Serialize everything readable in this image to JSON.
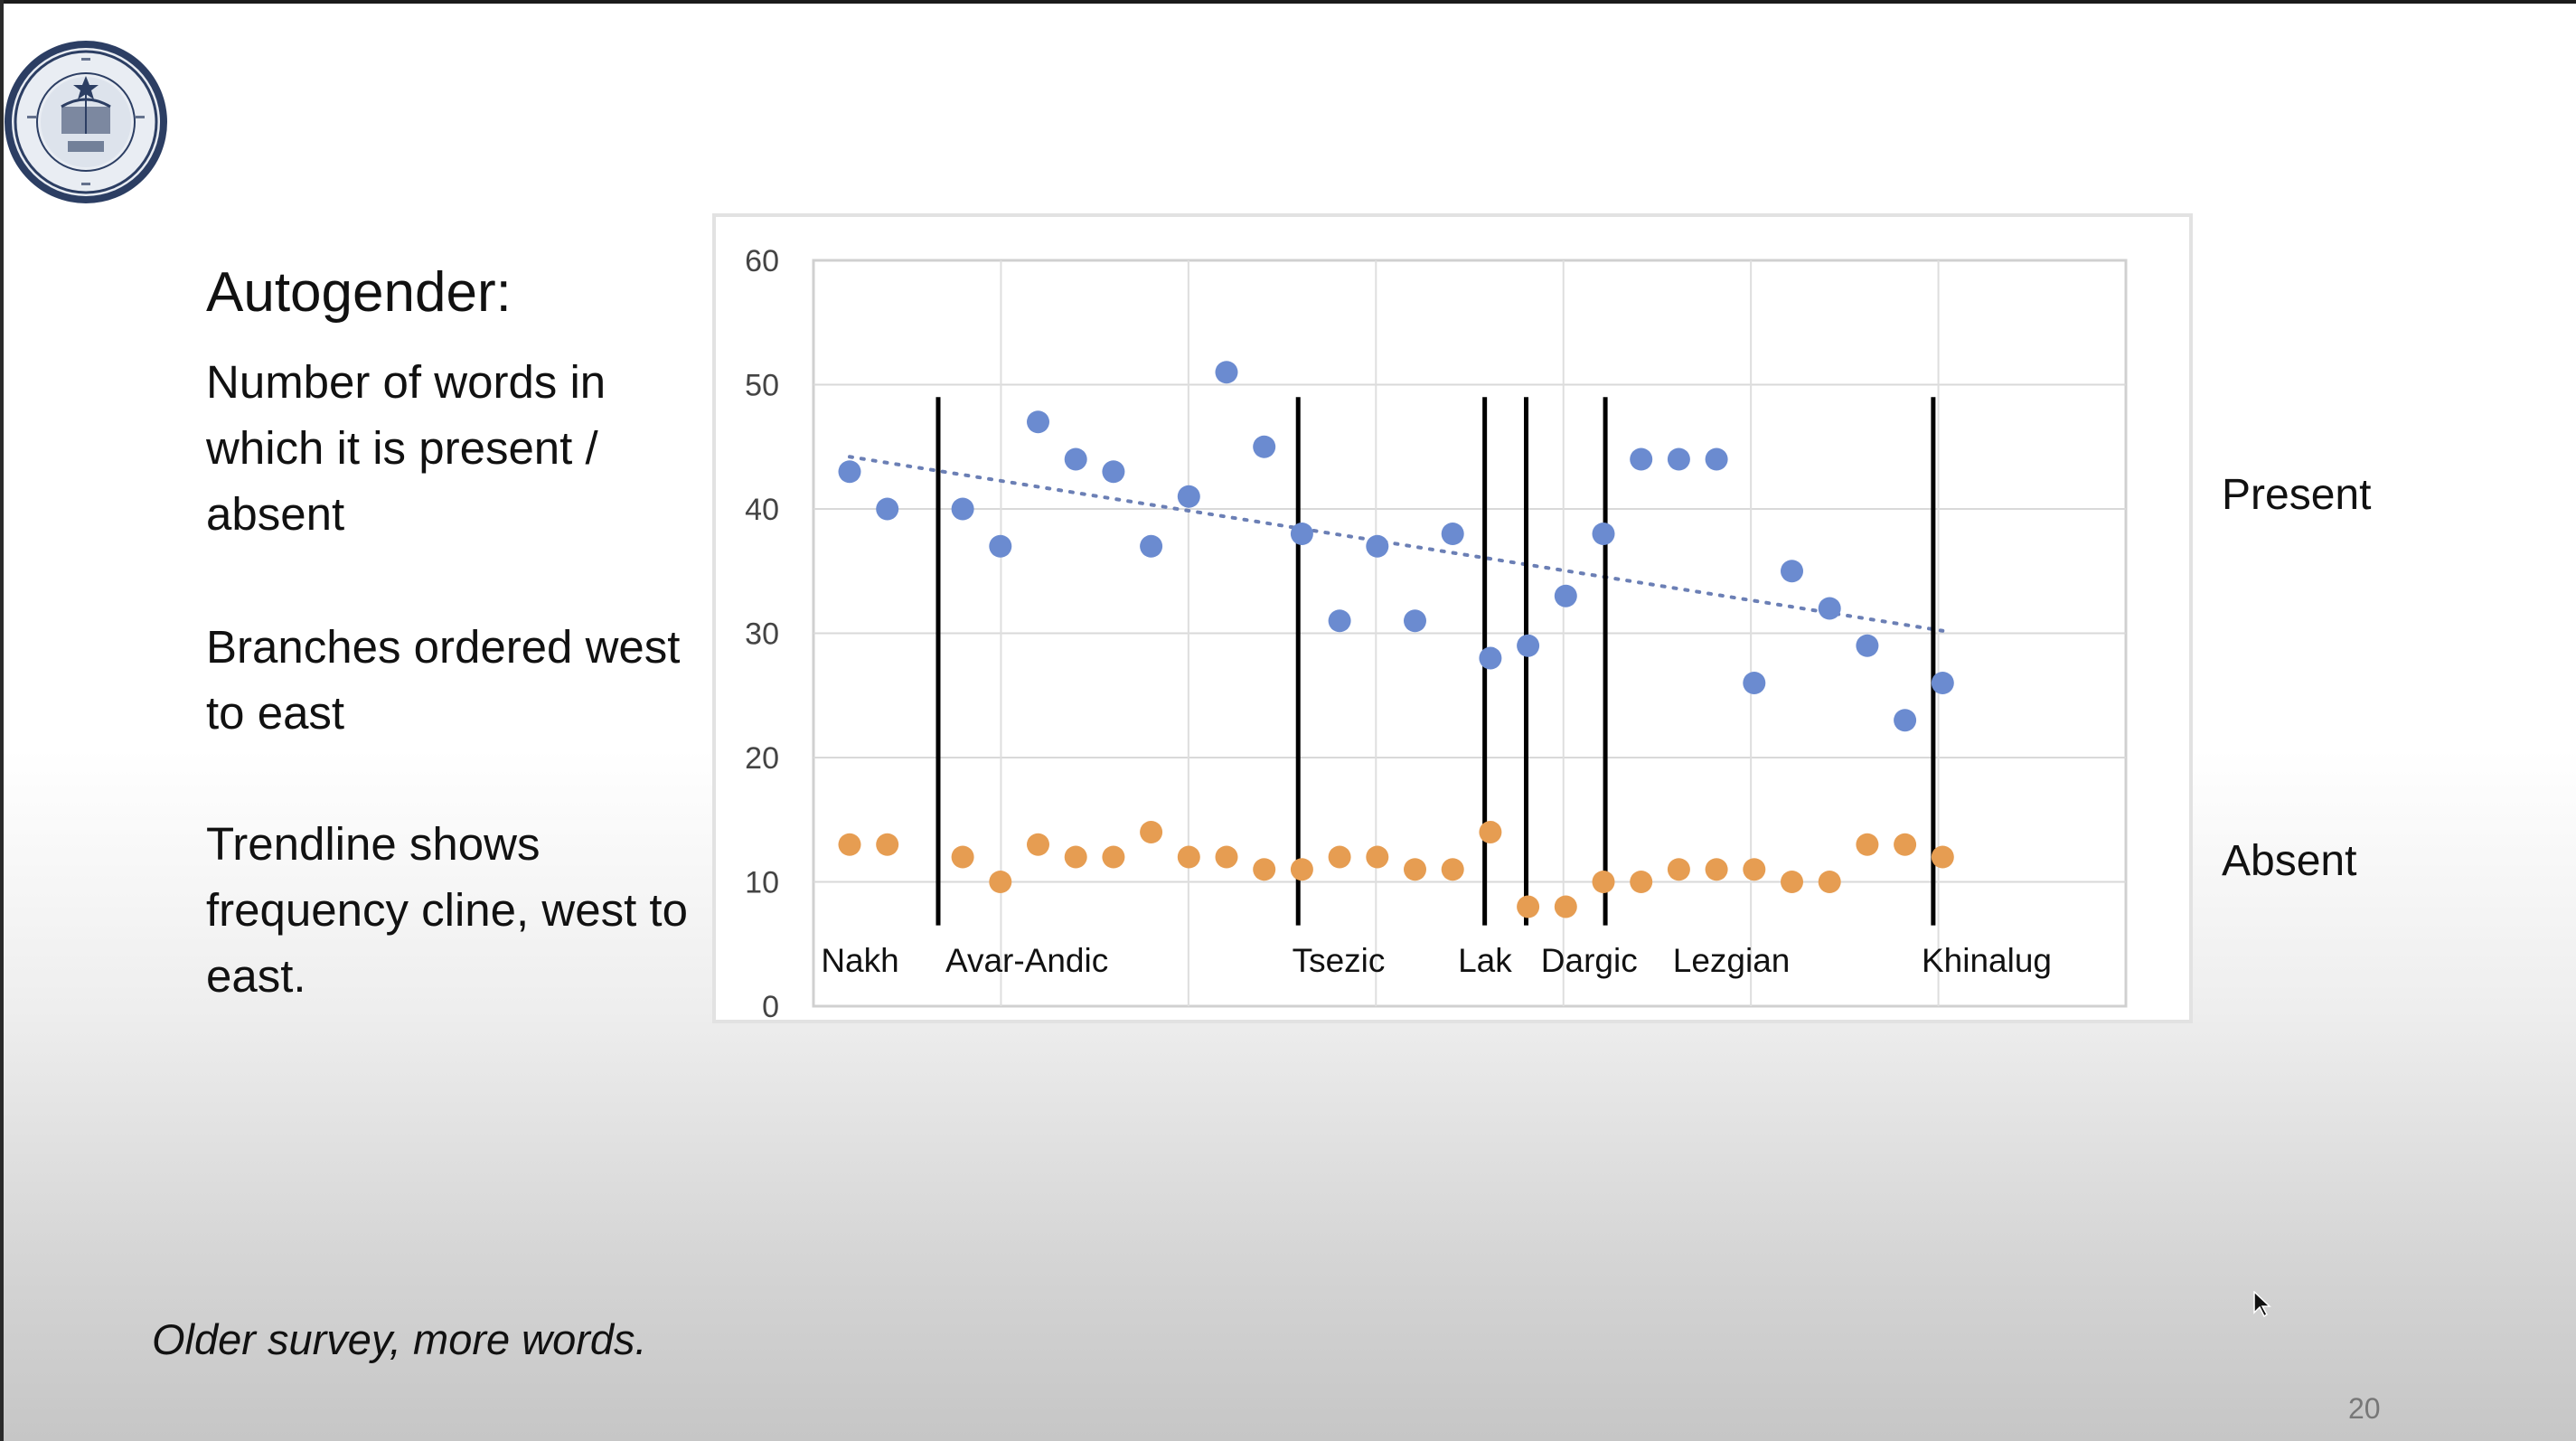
{
  "slide": {
    "title": "Autogender:",
    "text1": "Number of words in which it is present / absent",
    "text2": "Branches ordered west to east",
    "text3": "Trendline shows frequency cline, west to east.",
    "note": "Older survey, more words.",
    "page_number": "20",
    "logo_icon": "university-of-california-seal-icon"
  },
  "legend": {
    "present": "Present",
    "absent": "Absent"
  },
  "colors": {
    "present": "#6b8bd0",
    "absent": "#e69d52",
    "trend": "#6b7fb5",
    "divider": "#000000"
  },
  "chart_data": {
    "type": "scatter",
    "title": "",
    "xlabel": "",
    "ylabel": "",
    "ylim": [
      0,
      60
    ],
    "yticks": [
      0,
      10,
      20,
      30,
      40,
      50,
      60
    ],
    "grid": true,
    "x": [
      1,
      2,
      3,
      4,
      5,
      6,
      7,
      8,
      9,
      10,
      11,
      12,
      13,
      14,
      15,
      16,
      17,
      18,
      19,
      20,
      21,
      22,
      23,
      24,
      25,
      26,
      27,
      28,
      29,
      30
    ],
    "series": [
      {
        "name": "Present",
        "values": [
          43,
          40,
          40,
          37,
          47,
          44,
          43,
          37,
          41,
          51,
          45,
          38,
          31,
          37,
          31,
          38,
          28,
          29,
          33,
          38,
          44,
          44,
          44,
          26,
          35,
          32,
          29,
          23,
          26,
          null
        ]
      },
      {
        "name": "Absent",
        "values": [
          13,
          13,
          12,
          10,
          13,
          12,
          12,
          14,
          12,
          12,
          11,
          11,
          12,
          12,
          11,
          11,
          14,
          8,
          8,
          10,
          10,
          11,
          11,
          11,
          10,
          10,
          13,
          13,
          12,
          null
        ]
      }
    ],
    "present_x": [
      1,
      2,
      4,
      5,
      6,
      7,
      8,
      9,
      10,
      11,
      12,
      13,
      14,
      15,
      16,
      17,
      18,
      19,
      20,
      21,
      22,
      23,
      24,
      25,
      26,
      27,
      28,
      29,
      30
    ],
    "absent_x": [
      1,
      2,
      4,
      5,
      6,
      7,
      8,
      9,
      10,
      11,
      12,
      13,
      14,
      15,
      16,
      17,
      18,
      19,
      20,
      21,
      22,
      23,
      24,
      25,
      26,
      27,
      28,
      29,
      30
    ],
    "trendline": {
      "series": "Present",
      "style": "dotted",
      "from": [
        1,
        44.2
      ],
      "to": [
        30,
        30.2
      ]
    },
    "branch_dividers_x": [
      3.35,
      12.9,
      17.85,
      18.95,
      21.05,
      29.75
    ],
    "branch_labels": [
      {
        "label": "Nakh",
        "x": 1.2
      },
      {
        "label": "Avar-Andic",
        "x": 4.5
      },
      {
        "label": "Tsezic",
        "x": 13.7
      },
      {
        "label": "Lak",
        "x": 18.1
      },
      {
        "label": "Dargic",
        "x": 20.3
      },
      {
        "label": "Lezgian",
        "x": 23.8
      },
      {
        "label": "Khinalug",
        "x": 30.4
      }
    ]
  }
}
